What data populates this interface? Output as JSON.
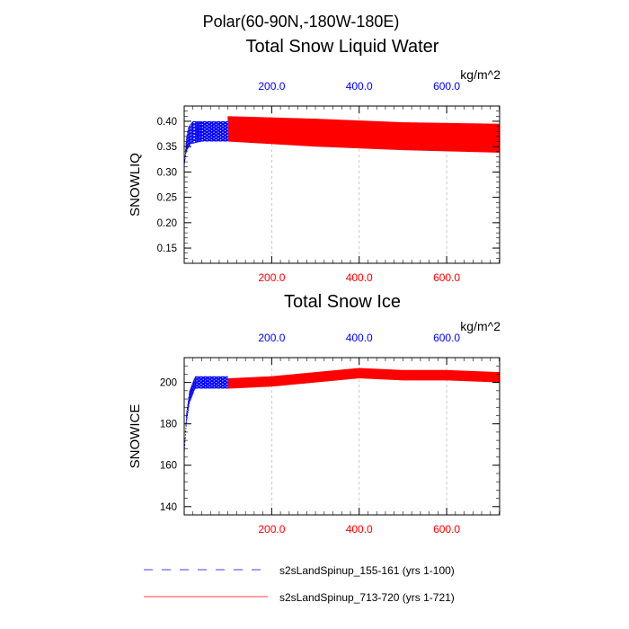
{
  "figure": {
    "title": "Polar(60-90N,-180W-180E)"
  },
  "colors": {
    "series_a": "#0000ff",
    "series_b": "#ff0000",
    "top_ticks": "#0000ff",
    "bottom_ticks": "#ff0000",
    "grid": "#bbbbbb",
    "axis": "#000000"
  },
  "chart_data": [
    {
      "type": "line",
      "title": "Total Snow Liquid Water",
      "units": "kg/m^2",
      "ylabel": "SNOWLIQ",
      "xlim": [
        0,
        721
      ],
      "ylim": [
        0.12,
        0.43
      ],
      "yticks": [
        0.15,
        0.2,
        0.25,
        0.3,
        0.35,
        0.4
      ],
      "ytick_labels": [
        "0.15",
        "0.20",
        "0.25",
        "0.30",
        "0.35",
        "0.40"
      ],
      "x_top_ticks": [
        200,
        400,
        600
      ],
      "x_top_labels": [
        "200.0",
        "400.0",
        "600.0"
      ],
      "x_bottom_ticks": [
        200,
        400,
        600
      ],
      "x_bottom_labels": [
        "200.0",
        "400.0",
        "600.0"
      ],
      "grid": "vertical dashed at x ticks",
      "series": [
        {
          "name": "s2sLandSpinup_155-161 (yrs 1-100)",
          "style": "dashed",
          "x_range": [
            0,
            100
          ],
          "points": [
            [
              0,
              0.31
            ],
            [
              5,
              0.37
            ],
            [
              10,
              0.39
            ],
            [
              20,
              0.4
            ],
            [
              100,
              0.4
            ]
          ],
          "seasonal_min": [
            [
              0,
              0.31
            ],
            [
              5,
              0.34
            ],
            [
              15,
              0.355
            ],
            [
              40,
              0.36
            ],
            [
              100,
              0.36
            ]
          ]
        },
        {
          "name": "s2sLandSpinup_713-720 (yrs 1-721)",
          "style": "solid",
          "x_range": [
            100,
            721
          ],
          "points": [
            [
              100,
              0.41
            ],
            [
              300,
              0.405
            ],
            [
              500,
              0.398
            ],
            [
              721,
              0.395
            ]
          ],
          "seasonal_min": [
            [
              100,
              0.36
            ],
            [
              300,
              0.35
            ],
            [
              500,
              0.343
            ],
            [
              721,
              0.338
            ]
          ]
        }
      ]
    },
    {
      "type": "line",
      "title": "Total Snow Ice",
      "units": "kg/m^2",
      "ylabel": "SNOWICE",
      "xlim": [
        0,
        721
      ],
      "ylim": [
        136,
        212
      ],
      "yticks": [
        140,
        160,
        180,
        200
      ],
      "ytick_labels": [
        "140",
        "160",
        "180",
        "200"
      ],
      "x_top_ticks": [
        200,
        400,
        600
      ],
      "x_top_labels": [
        "200.0",
        "400.0",
        "600.0"
      ],
      "x_bottom_ticks": [
        200,
        400,
        600
      ],
      "x_bottom_labels": [
        "200.0",
        "400.0",
        "600.0"
      ],
      "grid": "vertical dashed at x ticks",
      "series": [
        {
          "name": "s2sLandSpinup_155-161 (yrs 1-100)",
          "style": "dashed",
          "x_range": [
            0,
            100
          ],
          "points": [
            [
              0,
              165
            ],
            [
              5,
              185
            ],
            [
              12,
              196
            ],
            [
              25,
              203
            ],
            [
              100,
              203
            ]
          ],
          "seasonal_min": [
            [
              0,
              165
            ],
            [
              5,
              180
            ],
            [
              12,
              190
            ],
            [
              25,
              197
            ],
            [
              100,
              197
            ]
          ]
        },
        {
          "name": "s2sLandSpinup_713-720 (yrs 1-721)",
          "style": "solid",
          "x_range": [
            100,
            721
          ],
          "points": [
            [
              100,
              202
            ],
            [
              200,
              203
            ],
            [
              300,
              205
            ],
            [
              400,
              207
            ],
            [
              500,
              206
            ],
            [
              600,
              206
            ],
            [
              721,
              205
            ]
          ],
          "seasonal_min": [
            [
              100,
              197
            ],
            [
              200,
              198
            ],
            [
              300,
              200
            ],
            [
              400,
              202
            ],
            [
              500,
              201
            ],
            [
              600,
              201
            ],
            [
              721,
              200
            ]
          ]
        }
      ]
    }
  ],
  "legend": {
    "items": [
      {
        "label": "s2sLandSpinup_155-161 (yrs 1-100)",
        "style": "dashed",
        "color": "#0000ff"
      },
      {
        "label": "s2sLandSpinup_713-720 (yrs 1-721)",
        "style": "solid",
        "color": "#ff0000"
      }
    ]
  }
}
